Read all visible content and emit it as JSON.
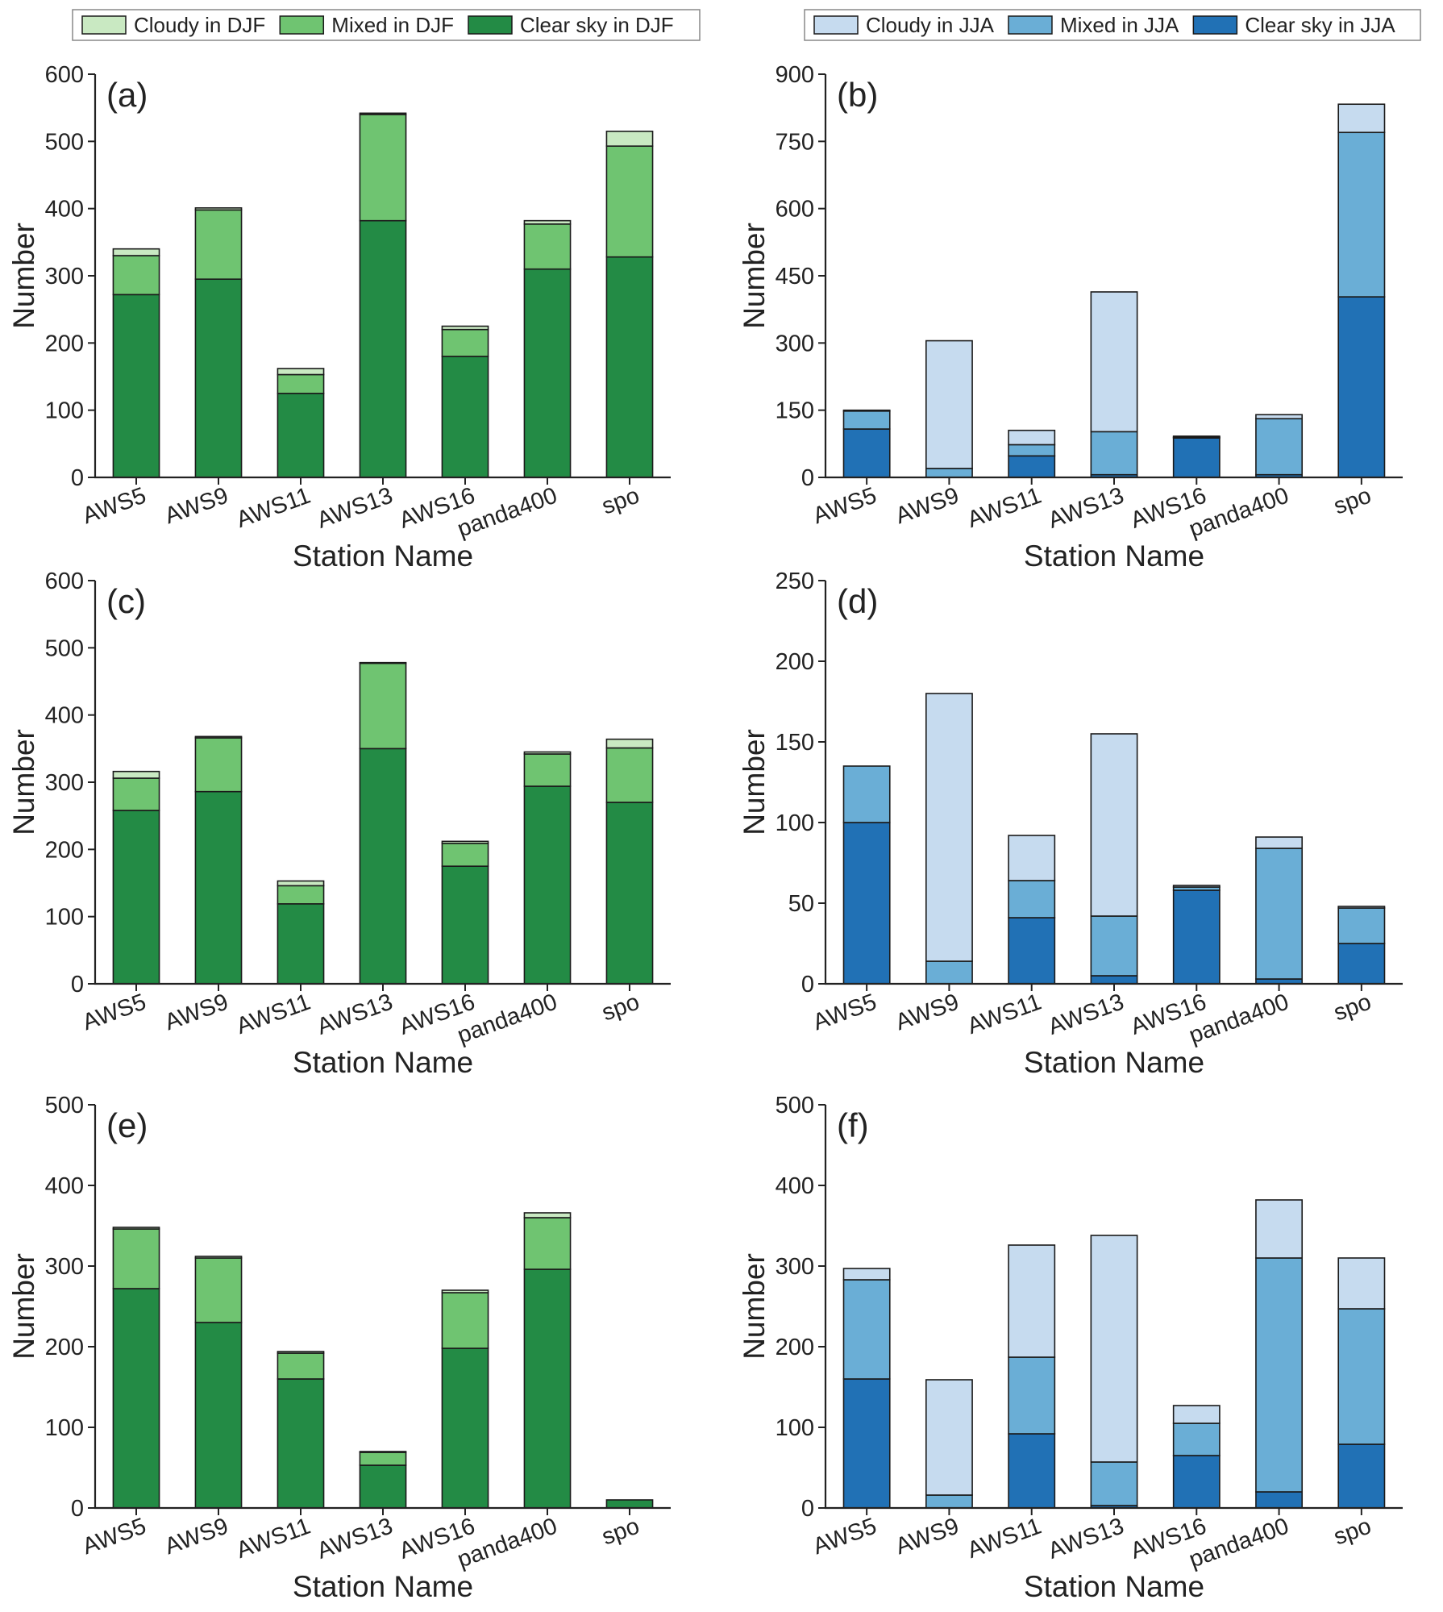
{
  "legends": {
    "djf": [
      {
        "label": "Cloudy in DJF",
        "color": "#c9e9c2"
      },
      {
        "label": "Mixed in DJF",
        "color": "#6fc471"
      },
      {
        "label": "Clear sky in DJF",
        "color": "#238b45"
      }
    ],
    "jja": [
      {
        "label": "Cloudy in JJA",
        "color": "#c6dbef"
      },
      {
        "label": "Mixed in JJA",
        "color": "#6aaed6"
      },
      {
        "label": "Clear sky in JJA",
        "color": "#2171b5"
      }
    ]
  },
  "chart_data": [
    {
      "panel": "(a)",
      "type": "bar",
      "stacked": true,
      "season": "djf",
      "xlabel": "Station Name",
      "ylabel": "Number",
      "ylim": [
        0,
        600
      ],
      "yticks": [
        0,
        100,
        200,
        300,
        400,
        500,
        600
      ],
      "categories": [
        "AWS5",
        "AWS9",
        "AWS11",
        "AWS13",
        "AWS16",
        "panda400",
        "spo"
      ],
      "series": [
        {
          "name": "Clear sky in DJF",
          "values": [
            272,
            295,
            125,
            382,
            180,
            310,
            328
          ]
        },
        {
          "name": "Mixed in DJF",
          "values": [
            58,
            103,
            28,
            158,
            40,
            67,
            165
          ]
        },
        {
          "name": "Cloudy in DJF",
          "values": [
            10,
            3,
            9,
            2,
            5,
            5,
            22
          ]
        }
      ]
    },
    {
      "panel": "(b)",
      "type": "bar",
      "stacked": true,
      "season": "jja",
      "xlabel": "Station Name",
      "ylabel": "Number",
      "ylim": [
        0,
        900
      ],
      "yticks": [
        0,
        150,
        300,
        450,
        600,
        750,
        900
      ],
      "categories": [
        "AWS5",
        "AWS9",
        "AWS11",
        "AWS13",
        "AWS16",
        "panda400",
        "spo"
      ],
      "series": [
        {
          "name": "Clear sky in JJA",
          "values": [
            108,
            0,
            48,
            6,
            88,
            6,
            403
          ]
        },
        {
          "name": "Mixed in JJA",
          "values": [
            40,
            20,
            25,
            96,
            2,
            125,
            367
          ]
        },
        {
          "name": "Cloudy in JJA",
          "values": [
            2,
            285,
            32,
            312,
            2,
            9,
            63
          ]
        }
      ]
    },
    {
      "panel": "(c)",
      "type": "bar",
      "stacked": true,
      "season": "djf",
      "xlabel": "Station Name",
      "ylabel": "Number",
      "ylim": [
        0,
        600
      ],
      "yticks": [
        0,
        100,
        200,
        300,
        400,
        500,
        600
      ],
      "categories": [
        "AWS5",
        "AWS9",
        "AWS11",
        "AWS13",
        "AWS16",
        "panda400",
        "spo"
      ],
      "series": [
        {
          "name": "Clear sky in DJF",
          "values": [
            258,
            286,
            119,
            350,
            175,
            294,
            270
          ]
        },
        {
          "name": "Mixed in DJF",
          "values": [
            48,
            80,
            27,
            127,
            34,
            48,
            81
          ]
        },
        {
          "name": "Cloudy in DJF",
          "values": [
            10,
            2,
            7,
            1,
            3,
            3,
            13
          ]
        }
      ]
    },
    {
      "panel": "(d)",
      "type": "bar",
      "stacked": true,
      "season": "jja",
      "xlabel": "Station Name",
      "ylabel": "Number",
      "ylim": [
        0,
        250
      ],
      "yticks": [
        0,
        50,
        100,
        150,
        200,
        250
      ],
      "categories": [
        "AWS5",
        "AWS9",
        "AWS11",
        "AWS13",
        "AWS16",
        "panda400",
        "spo"
      ],
      "series": [
        {
          "name": "Clear sky in JJA",
          "values": [
            100,
            0,
            41,
            5,
            58,
            3,
            25
          ]
        },
        {
          "name": "Mixed in JJA",
          "values": [
            35,
            14,
            23,
            37,
            2,
            81,
            22
          ]
        },
        {
          "name": "Cloudy in JJA",
          "values": [
            0,
            166,
            28,
            113,
            1,
            7,
            1
          ]
        }
      ]
    },
    {
      "panel": "(e)",
      "type": "bar",
      "stacked": true,
      "season": "djf",
      "xlabel": "Station Name",
      "ylabel": "Number",
      "ylim": [
        0,
        500
      ],
      "yticks": [
        0,
        100,
        200,
        300,
        400,
        500
      ],
      "categories": [
        "AWS5",
        "AWS9",
        "AWS11",
        "AWS13",
        "AWS16",
        "panda400",
        "spo"
      ],
      "series": [
        {
          "name": "Clear sky in DJF",
          "values": [
            272,
            230,
            160,
            53,
            198,
            296,
            10
          ]
        },
        {
          "name": "Mixed in DJF",
          "values": [
            74,
            80,
            32,
            16,
            69,
            64,
            0
          ]
        },
        {
          "name": "Cloudy in DJF",
          "values": [
            2,
            2,
            2,
            1,
            3,
            6,
            0
          ]
        }
      ]
    },
    {
      "panel": "(f)",
      "type": "bar",
      "stacked": true,
      "season": "jja",
      "xlabel": "Station Name",
      "ylabel": "Number",
      "ylim": [
        0,
        500
      ],
      "yticks": [
        0,
        100,
        200,
        300,
        400,
        500
      ],
      "categories": [
        "AWS5",
        "AWS9",
        "AWS11",
        "AWS13",
        "AWS16",
        "panda400",
        "spo"
      ],
      "series": [
        {
          "name": "Clear sky in JJA",
          "values": [
            160,
            0,
            92,
            3,
            65,
            20,
            79
          ]
        },
        {
          "name": "Mixed in JJA",
          "values": [
            123,
            16,
            95,
            54,
            40,
            290,
            168
          ]
        },
        {
          "name": "Cloudy in JJA",
          "values": [
            14,
            143,
            139,
            281,
            22,
            72,
            63
          ]
        }
      ]
    }
  ]
}
